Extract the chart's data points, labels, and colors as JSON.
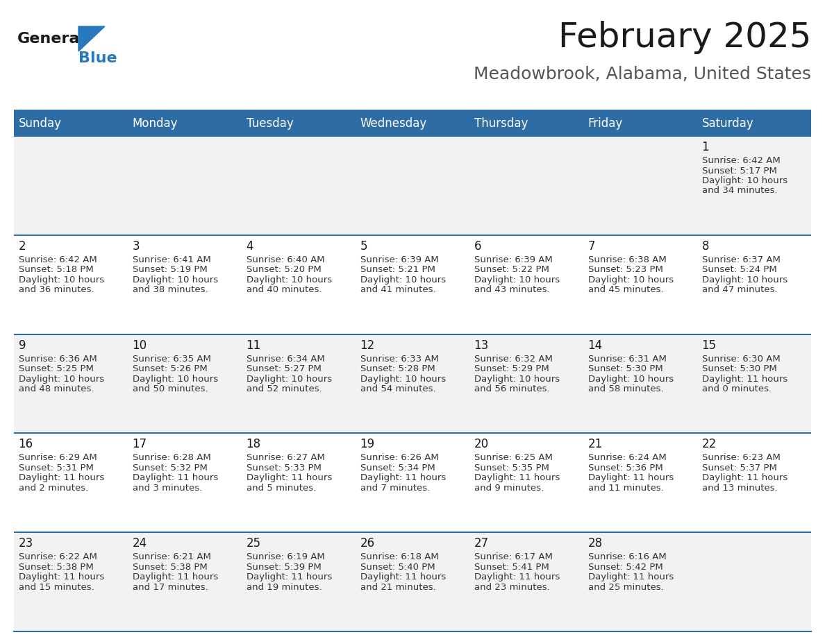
{
  "title": "February 2025",
  "subtitle": "Meadowbrook, Alabama, United States",
  "days_of_week": [
    "Sunday",
    "Monday",
    "Tuesday",
    "Wednesday",
    "Thursday",
    "Friday",
    "Saturday"
  ],
  "header_bg": "#2e6da4",
  "header_text": "#ffffff",
  "cell_bg_odd": "#f2f2f2",
  "cell_bg_even": "#ffffff",
  "border_color": "#2e6da4",
  "title_color": "#1a1a1a",
  "subtitle_color": "#555555",
  "text_color": "#333333",
  "day_num_color": "#1a1a1a",
  "logo_text_color": "#1a1a1a",
  "logo_blue_color": "#2878be",
  "logo_triangle_color": "#2878be",
  "calendar_data": [
    [
      null,
      null,
      null,
      null,
      null,
      null,
      {
        "day": 1,
        "sunrise": "6:42 AM",
        "sunset": "5:17 PM",
        "daylight": "10 hours and 34 minutes."
      }
    ],
    [
      {
        "day": 2,
        "sunrise": "6:42 AM",
        "sunset": "5:18 PM",
        "daylight": "10 hours and 36 minutes."
      },
      {
        "day": 3,
        "sunrise": "6:41 AM",
        "sunset": "5:19 PM",
        "daylight": "10 hours and 38 minutes."
      },
      {
        "day": 4,
        "sunrise": "6:40 AM",
        "sunset": "5:20 PM",
        "daylight": "10 hours and 40 minutes."
      },
      {
        "day": 5,
        "sunrise": "6:39 AM",
        "sunset": "5:21 PM",
        "daylight": "10 hours and 41 minutes."
      },
      {
        "day": 6,
        "sunrise": "6:39 AM",
        "sunset": "5:22 PM",
        "daylight": "10 hours and 43 minutes."
      },
      {
        "day": 7,
        "sunrise": "6:38 AM",
        "sunset": "5:23 PM",
        "daylight": "10 hours and 45 minutes."
      },
      {
        "day": 8,
        "sunrise": "6:37 AM",
        "sunset": "5:24 PM",
        "daylight": "10 hours and 47 minutes."
      }
    ],
    [
      {
        "day": 9,
        "sunrise": "6:36 AM",
        "sunset": "5:25 PM",
        "daylight": "10 hours and 48 minutes."
      },
      {
        "day": 10,
        "sunrise": "6:35 AM",
        "sunset": "5:26 PM",
        "daylight": "10 hours and 50 minutes."
      },
      {
        "day": 11,
        "sunrise": "6:34 AM",
        "sunset": "5:27 PM",
        "daylight": "10 hours and 52 minutes."
      },
      {
        "day": 12,
        "sunrise": "6:33 AM",
        "sunset": "5:28 PM",
        "daylight": "10 hours and 54 minutes."
      },
      {
        "day": 13,
        "sunrise": "6:32 AM",
        "sunset": "5:29 PM",
        "daylight": "10 hours and 56 minutes."
      },
      {
        "day": 14,
        "sunrise": "6:31 AM",
        "sunset": "5:30 PM",
        "daylight": "10 hours and 58 minutes."
      },
      {
        "day": 15,
        "sunrise": "6:30 AM",
        "sunset": "5:30 PM",
        "daylight": "11 hours and 0 minutes."
      }
    ],
    [
      {
        "day": 16,
        "sunrise": "6:29 AM",
        "sunset": "5:31 PM",
        "daylight": "11 hours and 2 minutes."
      },
      {
        "day": 17,
        "sunrise": "6:28 AM",
        "sunset": "5:32 PM",
        "daylight": "11 hours and 3 minutes."
      },
      {
        "day": 18,
        "sunrise": "6:27 AM",
        "sunset": "5:33 PM",
        "daylight": "11 hours and 5 minutes."
      },
      {
        "day": 19,
        "sunrise": "6:26 AM",
        "sunset": "5:34 PM",
        "daylight": "11 hours and 7 minutes."
      },
      {
        "day": 20,
        "sunrise": "6:25 AM",
        "sunset": "5:35 PM",
        "daylight": "11 hours and 9 minutes."
      },
      {
        "day": 21,
        "sunrise": "6:24 AM",
        "sunset": "5:36 PM",
        "daylight": "11 hours and 11 minutes."
      },
      {
        "day": 22,
        "sunrise": "6:23 AM",
        "sunset": "5:37 PM",
        "daylight": "11 hours and 13 minutes."
      }
    ],
    [
      {
        "day": 23,
        "sunrise": "6:22 AM",
        "sunset": "5:38 PM",
        "daylight": "11 hours and 15 minutes."
      },
      {
        "day": 24,
        "sunrise": "6:21 AM",
        "sunset": "5:38 PM",
        "daylight": "11 hours and 17 minutes."
      },
      {
        "day": 25,
        "sunrise": "6:19 AM",
        "sunset": "5:39 PM",
        "daylight": "11 hours and 19 minutes."
      },
      {
        "day": 26,
        "sunrise": "6:18 AM",
        "sunset": "5:40 PM",
        "daylight": "11 hours and 21 minutes."
      },
      {
        "day": 27,
        "sunrise": "6:17 AM",
        "sunset": "5:41 PM",
        "daylight": "11 hours and 23 minutes."
      },
      {
        "day": 28,
        "sunrise": "6:16 AM",
        "sunset": "5:42 PM",
        "daylight": "11 hours and 25 minutes."
      },
      null
    ]
  ]
}
